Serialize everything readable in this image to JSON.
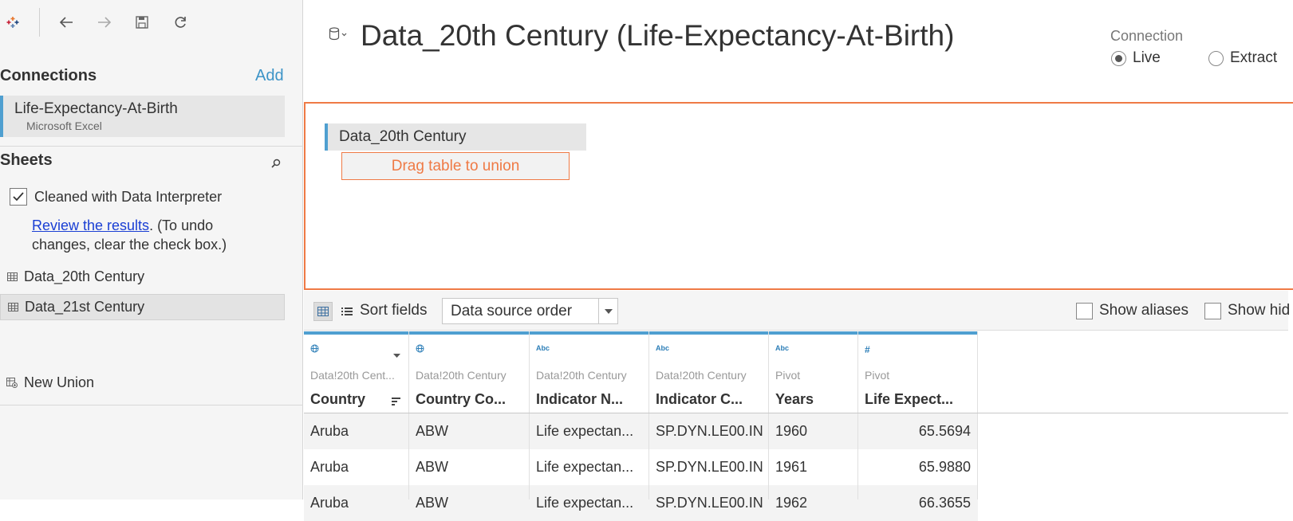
{
  "toolbar": {
    "icons": [
      "tableau-logo-icon",
      "back-icon",
      "forward-icon",
      "save-icon",
      "refresh-icon"
    ]
  },
  "connections": {
    "title": "Connections",
    "add_label": "Add",
    "items": [
      {
        "name": "Life-Expectancy-At-Birth",
        "type": "Microsoft Excel"
      }
    ]
  },
  "sheets": {
    "title": "Sheets",
    "interpreter_label": "Cleaned with Data Interpreter",
    "interpreter_checked": true,
    "review_link": "Review the results",
    "review_suffix": ". (To undo changes, clear the check box.)",
    "items": [
      {
        "label": "Data_20th Century"
      },
      {
        "label": "Data_21st Century"
      }
    ],
    "new_union": "New Union"
  },
  "header": {
    "title": "Data_20th Century (Life-Expectancy-At-Birth)",
    "connection_label": "Connection",
    "live_label": "Live",
    "extract_label": "Extract",
    "selected": "Live"
  },
  "canvas": {
    "table_name": "Data_20th Century",
    "drop_hint": "Drag table to union"
  },
  "grid_toolbar": {
    "sort_label": "Sort fields",
    "sort_value": "Data source order",
    "show_aliases": "Show aliases",
    "show_hidden": "Show hid"
  },
  "grid": {
    "columns": [
      {
        "type": "globe",
        "source": "Data!20th Cent...",
        "name": "Country"
      },
      {
        "type": "globe",
        "source": "Data!20th Century",
        "name": "Country Co..."
      },
      {
        "type": "Abc",
        "source": "Data!20th Century",
        "name": "Indicator N..."
      },
      {
        "type": "Abc",
        "source": "Data!20th Century",
        "name": "Indicator C..."
      },
      {
        "type": "Abc",
        "source": "Pivot",
        "name": "Years"
      },
      {
        "type": "#",
        "source": "Pivot",
        "name": "Life Expect..."
      }
    ],
    "rows": [
      [
        "Aruba",
        "ABW",
        "Life expectan...",
        "SP.DYN.LE00.IN",
        "1960",
        "65.5694"
      ],
      [
        "Aruba",
        "ABW",
        "Life expectan...",
        "SP.DYN.LE00.IN",
        "1961",
        "65.9880"
      ],
      [
        "Aruba",
        "ABW",
        "Life expectan...",
        "SP.DYN.LE00.IN",
        "1962",
        "66.3655"
      ]
    ]
  },
  "colors": {
    "accent_blue": "#4f9fd0",
    "orange": "#ef7a45",
    "link": "#1a3fd4"
  }
}
